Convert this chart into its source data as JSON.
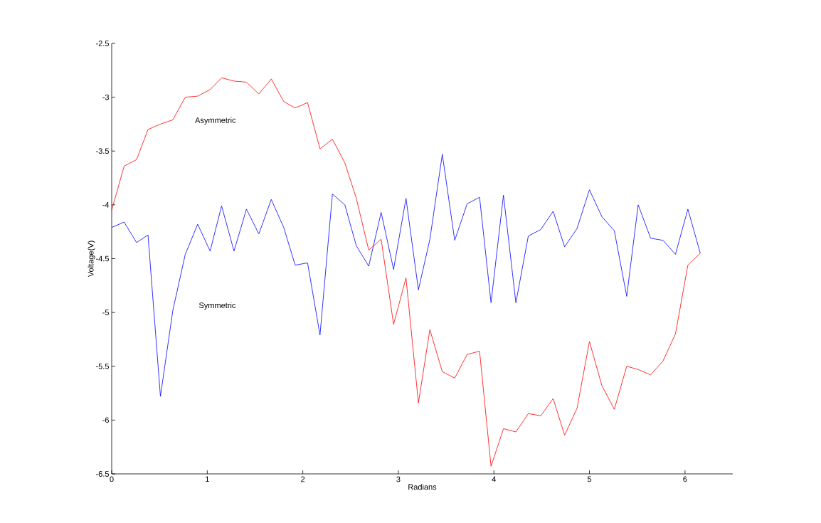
{
  "chart_data": {
    "type": "line",
    "xlabel": "Radians",
    "ylabel": "Voltage(V)",
    "x": [
      0,
      0.13,
      0.26,
      0.38,
      0.51,
      0.64,
      0.77,
      0.9,
      1.03,
      1.15,
      1.28,
      1.41,
      1.54,
      1.67,
      1.8,
      1.92,
      2.05,
      2.18,
      2.31,
      2.44,
      2.56,
      2.69,
      2.82,
      2.95,
      3.08,
      3.21,
      3.33,
      3.46,
      3.59,
      3.72,
      3.85,
      3.97,
      4.1,
      4.23,
      4.36,
      4.49,
      4.62,
      4.74,
      4.87,
      5,
      5.13,
      5.26,
      5.39,
      5.51,
      5.64,
      5.77,
      5.9,
      6.03,
      6.16
    ],
    "series": [
      {
        "color": "#ff0000",
        "values": [
          -4.05,
          -3.64,
          -3.58,
          -3.3,
          -3.25,
          -3.21,
          -3.0,
          -2.99,
          -2.93,
          -2.82,
          -2.85,
          -2.86,
          -2.97,
          -2.83,
          -3.04,
          -3.1,
          -3.05,
          -3.48,
          -3.39,
          -3.61,
          -3.94,
          -4.42,
          -4.32,
          -5.11,
          -4.68,
          -5.84,
          -5.16,
          -5.55,
          -5.61,
          -5.39,
          -5.36,
          -6.43,
          -6.08,
          -6.11,
          -5.94,
          -5.96,
          -5.8,
          -6.14,
          -5.89,
          -5.27,
          -5.68,
          -5.9,
          -5.5,
          -5.53,
          -5.58,
          -5.45,
          -5.2,
          -4.56,
          -4.45
        ]
      },
      {
        "color": "#0000ff",
        "values": [
          -4.21,
          -4.16,
          -4.35,
          -4.28,
          -5.78,
          -4.98,
          -4.46,
          -4.18,
          -4.43,
          -4.01,
          -4.43,
          -4.04,
          -4.27,
          -3.95,
          -4.21,
          -4.56,
          -4.54,
          -5.21,
          -3.9,
          -4.0,
          -4.38,
          -4.57,
          -4.07,
          -4.6,
          -3.94,
          -4.79,
          -4.32,
          -3.53,
          -4.33,
          -3.99,
          -3.93,
          -4.91,
          -3.91,
          -4.91,
          -4.29,
          -4.23,
          -4.06,
          -4.39,
          -4.22,
          -3.86,
          -4.11,
          -4.24,
          -4.85,
          -4.0,
          -4.31,
          -4.33,
          -4.46,
          -4.04,
          -4.45
        ]
      }
    ],
    "xlim": [
      0,
      6.5
    ],
    "ylim": [
      -6.5,
      -2.5
    ],
    "xticks": [
      0,
      1,
      2,
      3,
      4,
      5,
      6
    ],
    "yticks": [
      -6.5,
      -6,
      -5.5,
      -5,
      -4.5,
      -4,
      -3.5,
      -3,
      -2.5
    ],
    "annotations": [
      "Asymmetric",
      "Symmetric"
    ],
    "grid": false,
    "marker": "none",
    "line_style": "solid"
  }
}
